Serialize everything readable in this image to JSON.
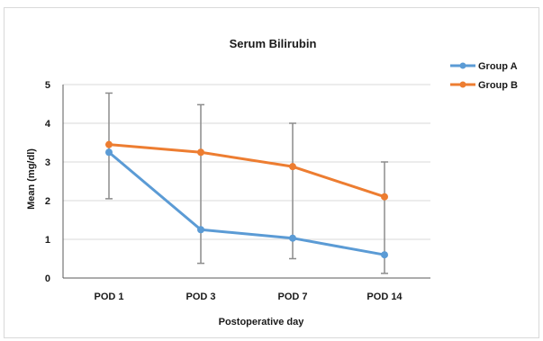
{
  "chart_data": {
    "type": "line",
    "title": "Serum Bilirubin",
    "xlabel": "Postoperative day",
    "ylabel": "Mean (mg/dl)",
    "categories": [
      "POD 1",
      "POD 3",
      "POD 7",
      "POD 14"
    ],
    "ylim": [
      0,
      5
    ],
    "yticks": [
      "0",
      "1",
      "2",
      "3",
      "4",
      "5"
    ],
    "grid": true,
    "legend_position": "right",
    "series": [
      {
        "name": "Group A",
        "color": "#5b9bd5",
        "values": [
          3.25,
          1.25,
          1.03,
          0.6
        ],
        "error_low": [
          2.05,
          0.38,
          0.5,
          0.12
        ],
        "error_high": [
          4.78,
          4.48,
          4.0,
          3.0
        ]
      },
      {
        "name": "Group B",
        "color": "#ed7d31",
        "values": [
          3.45,
          3.25,
          2.88,
          2.1
        ]
      }
    ]
  }
}
